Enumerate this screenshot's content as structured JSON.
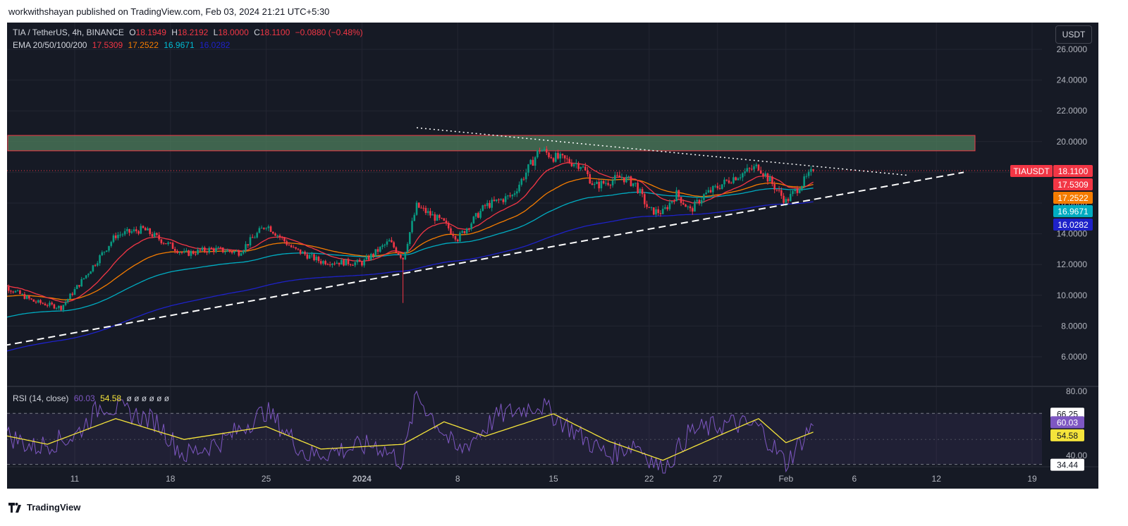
{
  "header": {
    "publish_text": "workwithshayan published on TradingView.com, Feb 03, 2024 21:21 UTC+5:30"
  },
  "footer": {
    "logo_text": "TradingView",
    "logo_icon": "tradingview-logo-icon"
  },
  "currency_button": "USDT",
  "legend": {
    "symbol": "TIA / TetherUS, 4h, BINANCE",
    "o_label": "O",
    "o_val": "18.1949",
    "h_label": "H",
    "h_val": "18.2192",
    "l_label": "L",
    "l_val": "18.0000",
    "c_label": "C",
    "c_val": "18.1100",
    "change": "−0.0880 (−0.48%)",
    "ema_label": "EMA 20/50/100/200",
    "ema_values": [
      "17.5309",
      "17.2522",
      "16.9671",
      "16.0282"
    ],
    "rsi_label": "RSI (14, close)",
    "rsi_values": [
      "60.03",
      "54.58"
    ],
    "rsi_empty": "ø ø ø ø ø ø"
  },
  "colors": {
    "background": "#161a25",
    "grid": "#232632",
    "up": "#089981",
    "down": "#f23645",
    "ema20": "#f23645",
    "ema50": "#f57c00",
    "ema100": "#00acc1",
    "ema200": "#1e22c9",
    "rsi": "#7e57c2",
    "rsi_ma": "#f5e43b",
    "zone_fill": "#4e7d5c",
    "zone_border": "#f23645"
  },
  "chart_data": {
    "type": "candlestick",
    "title": "TIA / TetherUS, 4h, BINANCE",
    "xlabel": "",
    "ylabel": "",
    "price_axis": {
      "ticks": [
        "26.0000",
        "24.0000",
        "22.0000",
        "20.0000",
        "18.0000",
        "16.0000",
        "14.0000",
        "12.0000",
        "10.0000",
        "8.0000",
        "6.0000"
      ],
      "ylim": [
        4.8,
        27.2
      ],
      "scale": "linear"
    },
    "time_axis": {
      "ticks": [
        "11",
        "18",
        "25",
        "2024",
        "8",
        "15",
        "22",
        "27",
        "Feb",
        "6",
        "12",
        "19"
      ]
    },
    "price_labels": [
      {
        "text": "TIAUSDT",
        "value": 18.11,
        "color": "#f23645"
      },
      {
        "text": "18.1100",
        "value": 18.11,
        "color": "#f23645"
      },
      {
        "text": "17.5309",
        "value": 17.5309,
        "color": "#f23645"
      },
      {
        "text": "17.2522",
        "value": 17.2522,
        "color": "#f57c00"
      },
      {
        "text": "16.9671",
        "value": 16.9671,
        "color": "#00acc1"
      },
      {
        "text": "16.0282",
        "value": 16.0282,
        "color": "#1e22c9"
      }
    ],
    "resistance_zone": {
      "low": 19.4,
      "high": 20.4
    },
    "last_price_line": 18.11,
    "trendlines": [
      {
        "name": "descending resistance",
        "style": "dotted",
        "from": {
          "date": "Jan 5",
          "price": 20.9
        },
        "to": {
          "date": "Feb 10",
          "price": 17.8
        }
      },
      {
        "name": "ascending support",
        "style": "dashed",
        "from": {
          "date": "Dec 5",
          "price": 6.6
        },
        "to": {
          "date": "Feb 14",
          "price": 18.0
        }
      }
    ],
    "ohlc_anchors": [
      {
        "date": "Dec 5",
        "close": 11.0,
        "low": 9.8
      },
      {
        "date": "Dec 8",
        "close": 9.6,
        "low": 9.0
      },
      {
        "date": "Dec 10",
        "close": 9.2,
        "low": 8.8
      },
      {
        "date": "Dec 12",
        "close": 11.5,
        "low": 10.9
      },
      {
        "date": "Dec 14",
        "close": 13.9,
        "low": 12.5
      },
      {
        "date": "Dec 16",
        "close": 14.3,
        "low": 13.0
      },
      {
        "date": "Dec 19",
        "close": 12.7,
        "low": 11.5
      },
      {
        "date": "Dec 21",
        "close": 13.0,
        "low": 11.9
      },
      {
        "date": "Dec 23",
        "close": 12.8,
        "low": 12.0
      },
      {
        "date": "Dec 25",
        "close": 14.6,
        "low": 13.5
      },
      {
        "date": "Dec 27",
        "close": 13.0,
        "low": 12.1
      },
      {
        "date": "Dec 29",
        "close": 12.2,
        "low": 11.6
      },
      {
        "date": "Jan 1",
        "close": 12.1,
        "low": 11.6
      },
      {
        "date": "Jan 3",
        "close": 13.5,
        "low": 12.5
      },
      {
        "date": "Jan 4",
        "close": 12.4,
        "low": 9.5
      },
      {
        "date": "Jan 5",
        "close": 15.8,
        "low": 12.6
      },
      {
        "date": "Jan 7",
        "close": 14.7,
        "low": 13.8
      },
      {
        "date": "Jan 8",
        "close": 13.7,
        "low": 12.6
      },
      {
        "date": "Jan 10",
        "close": 15.8,
        "low": 14.6
      },
      {
        "date": "Jan 12",
        "close": 16.5,
        "low": 15.6
      },
      {
        "date": "Jan 14",
        "close": 19.5,
        "low": 17.5
      },
      {
        "date": "Jan 15",
        "close": 19.0,
        "low": 18.4
      },
      {
        "date": "Jan 17",
        "close": 18.5,
        "low": 17.6
      },
      {
        "date": "Jan 18",
        "close": 17.1,
        "low": 16.5
      },
      {
        "date": "Jan 20",
        "close": 17.7,
        "low": 16.8
      },
      {
        "date": "Jan 21",
        "close": 17.2,
        "low": 16.4
      },
      {
        "date": "Jan 22",
        "close": 15.5,
        "low": 14.6
      },
      {
        "date": "Jan 23",
        "close": 15.4,
        "low": 13.9
      },
      {
        "date": "Jan 24",
        "close": 16.6,
        "low": 15.8
      },
      {
        "date": "Jan 25",
        "close": 15.5,
        "low": 15.1
      },
      {
        "date": "Jan 26",
        "close": 16.5,
        "low": 15.6
      },
      {
        "date": "Jan 28",
        "close": 17.6,
        "low": 16.9
      },
      {
        "date": "Jan 30",
        "close": 18.4,
        "low": 17.6
      },
      {
        "date": "Feb 1",
        "close": 16.1,
        "low": 15.6
      },
      {
        "date": "Feb 3",
        "close": 18.11,
        "low": 17.7
      }
    ],
    "ema_last": {
      "ema20": 17.5309,
      "ema50": 17.2522,
      "ema100": 16.9671,
      "ema200": 16.0282
    },
    "rsi_panel": {
      "ticks": [
        "80.00",
        "40.00"
      ],
      "levels": [
        66.25,
        34.44
      ],
      "labels": [
        "66.25",
        "60.03",
        "54.58",
        "34.44"
      ],
      "ylim": [
        28,
        80
      ],
      "rsi_last": 60.03,
      "rsi_ma_last": 54.58,
      "rsi_anchors": [
        {
          "date": "Dec 5",
          "rsi": 57
        },
        {
          "date": "Dec 8",
          "rsi": 45
        },
        {
          "date": "Dec 11",
          "rsi": 52
        },
        {
          "date": "Dec 13",
          "rsi": 72
        },
        {
          "date": "Dec 17",
          "rsi": 61
        },
        {
          "date": "Dec 19",
          "rsi": 40
        },
        {
          "date": "Dec 22",
          "rsi": 50
        },
        {
          "date": "Dec 25",
          "rsi": 68
        },
        {
          "date": "Dec 28",
          "rsi": 40
        },
        {
          "date": "Jan 2",
          "rsi": 47
        },
        {
          "date": "Jan 4",
          "rsi": 36
        },
        {
          "date": "Jan 5",
          "rsi": 78
        },
        {
          "date": "Jan 8",
          "rsi": 42
        },
        {
          "date": "Jan 11",
          "rsi": 65
        },
        {
          "date": "Jan 14",
          "rsi": 72
        },
        {
          "date": "Jan 17",
          "rsi": 52
        },
        {
          "date": "Jan 19",
          "rsi": 40
        },
        {
          "date": "Jan 21",
          "rsi": 48
        },
        {
          "date": "Jan 23",
          "rsi": 30
        },
        {
          "date": "Jan 25",
          "rsi": 55
        },
        {
          "date": "Jan 28",
          "rsi": 60
        },
        {
          "date": "Jan 30",
          "rsi": 58
        },
        {
          "date": "Feb 1",
          "rsi": 35
        },
        {
          "date": "Feb 3",
          "rsi": 60
        }
      ],
      "rsi_ma_anchors": [
        {
          "date": "Dec 5",
          "rsi": 54
        },
        {
          "date": "Dec 9",
          "rsi": 47
        },
        {
          "date": "Dec 14",
          "rsi": 63
        },
        {
          "date": "Dec 19",
          "rsi": 50
        },
        {
          "date": "Dec 25",
          "rsi": 58
        },
        {
          "date": "Dec 29",
          "rsi": 44
        },
        {
          "date": "Jan 4",
          "rsi": 47
        },
        {
          "date": "Jan 7",
          "rsi": 61
        },
        {
          "date": "Jan 10",
          "rsi": 52
        },
        {
          "date": "Jan 15",
          "rsi": 66
        },
        {
          "date": "Jan 19",
          "rsi": 49
        },
        {
          "date": "Jan 23",
          "rsi": 37
        },
        {
          "date": "Jan 27",
          "rsi": 52
        },
        {
          "date": "Jan 30",
          "rsi": 63
        },
        {
          "date": "Feb 1",
          "rsi": 48
        },
        {
          "date": "Feb 3",
          "rsi": 54.58
        }
      ]
    }
  }
}
